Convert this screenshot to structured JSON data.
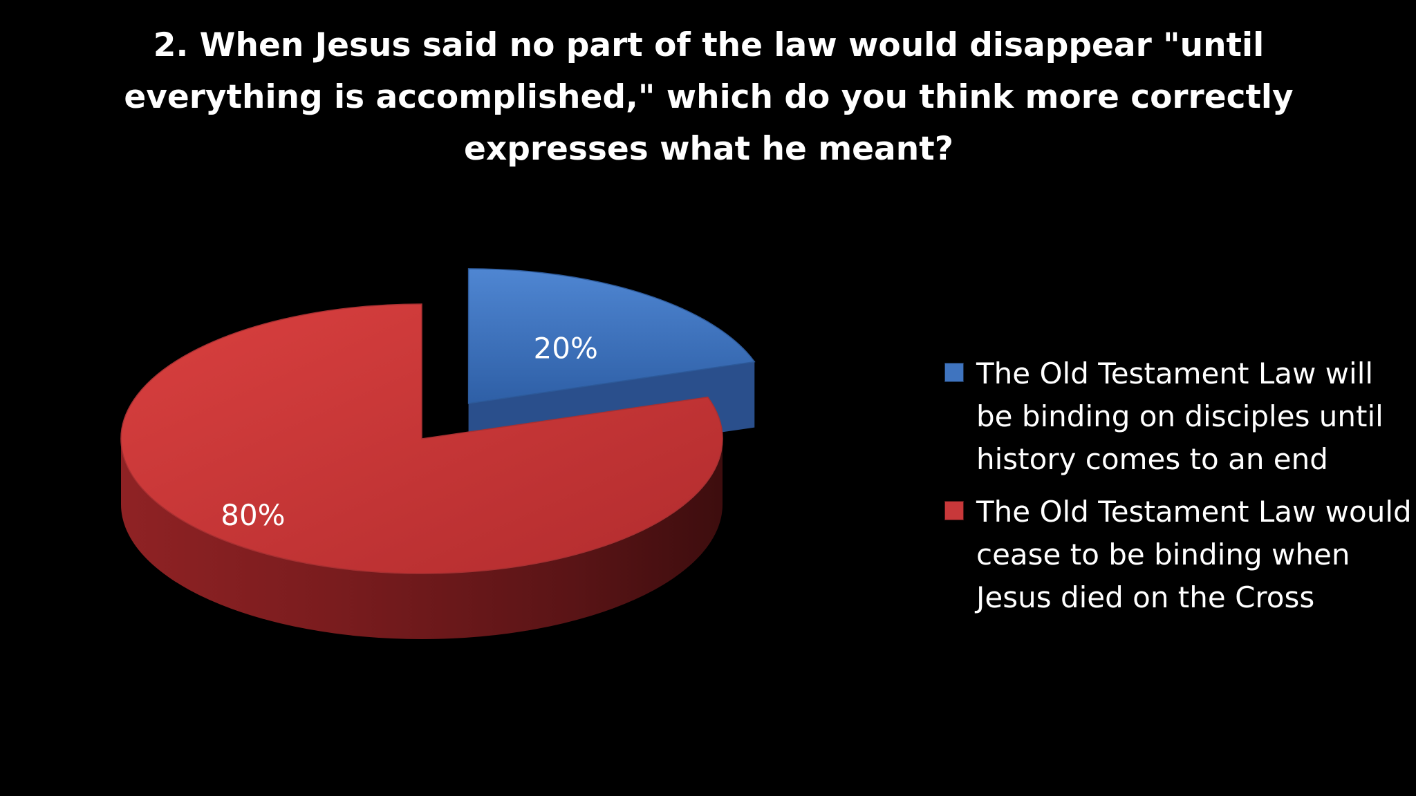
{
  "chart_data": {
    "type": "pie",
    "style": "3d-exploded",
    "title": "2. When Jesus said no part of the law would disappear \"until everything is accomplished,\" which do you think more correctly expresses what he meant?",
    "series": [
      {
        "name": "The Old Testament Law will be binding on disciples until history comes to an end",
        "value": 20,
        "label": "20%",
        "color": "#3f74bf",
        "exploded": true
      },
      {
        "name": "The Old Testament Law would cease to be binding when Jesus died on the Cross",
        "value": 80,
        "label": "80%",
        "color": "#c8383a",
        "exploded": false
      }
    ],
    "legend_position": "right"
  }
}
